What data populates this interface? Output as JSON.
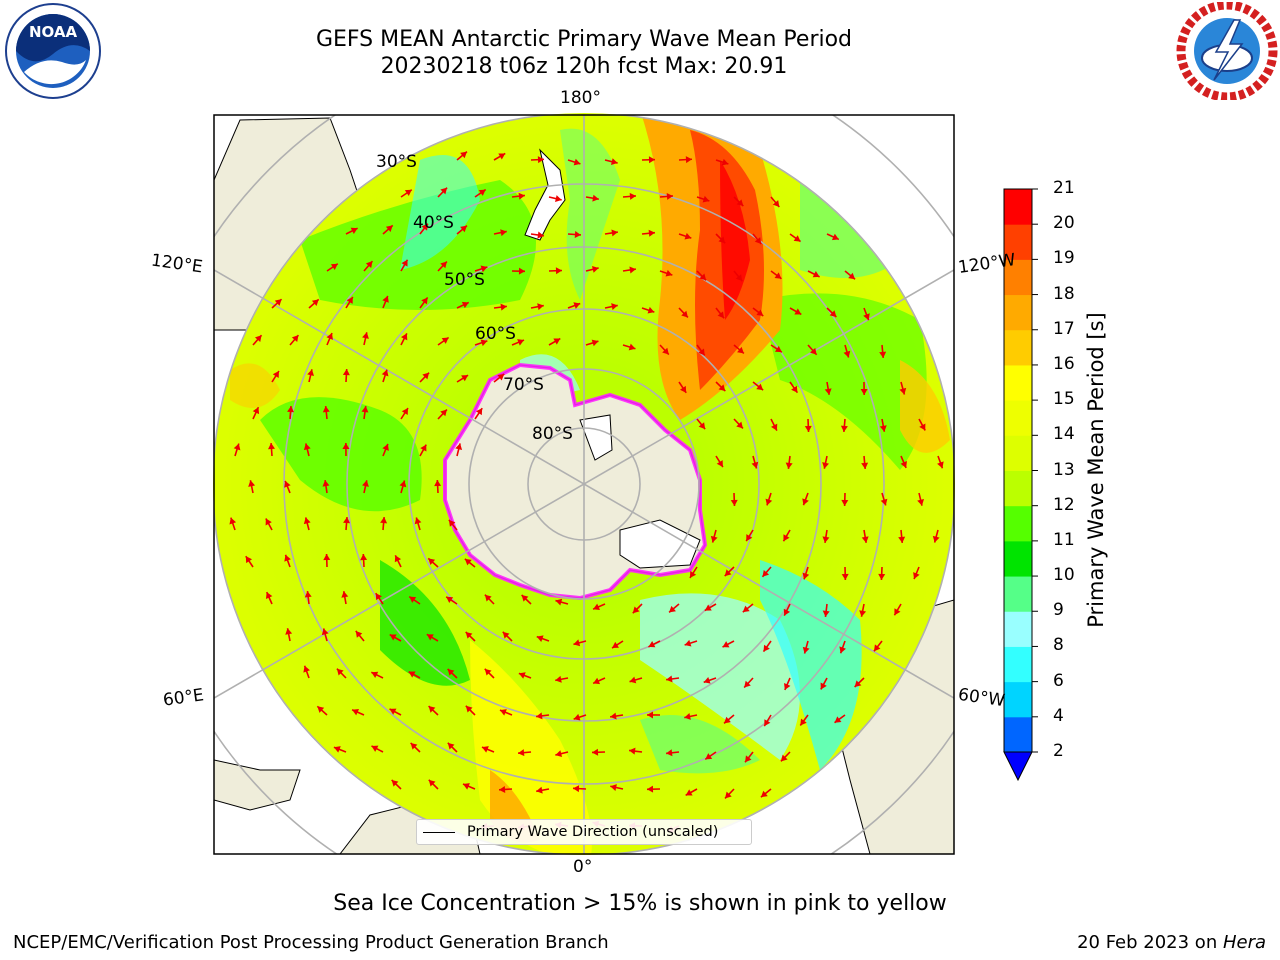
{
  "header": {
    "title_line1": "GEFS MEAN Antarctic Primary Wave Mean Period",
    "title_line2": "20230218 t06z 120h fcst   Max: 20.91"
  },
  "logos": {
    "left": {
      "name": "noaa-logo",
      "text": "NOAA",
      "ring_text": "NATIONAL OCEANIC AND ATMOSPHERIC ADMINISTRATION · U.S. DEPARTMENT OF COMMERCE"
    },
    "right": {
      "name": "nws-logo",
      "ring_text": "NATIONAL WEATHER SERVICE"
    }
  },
  "map": {
    "projection": "south-polar-stereographic",
    "longitude_labels": {
      "top": "180°",
      "bottom": "0°",
      "left_upper": "120°E",
      "left_lower": "60°E",
      "right_upper": "120°W",
      "right_lower": "60°W"
    },
    "latitude_labels": [
      "30°S",
      "40°S",
      "50°S",
      "60°S",
      "70°S",
      "80°S"
    ],
    "legend_label": "Primary Wave Direction (unscaled)",
    "colors": {
      "land": "#efedda",
      "ice_edge": "#ff22ff",
      "arrows": "#ee0000",
      "grid": "#b0b0b0"
    }
  },
  "colorbar": {
    "title": "Primary Wave Mean Period [s]",
    "ticks": [
      "2",
      "4",
      "6",
      "8",
      "9",
      "10",
      "11",
      "12",
      "13",
      "14",
      "15",
      "16",
      "17",
      "18",
      "19",
      "20",
      "21"
    ],
    "colors": [
      "#0066ff",
      "#00d4ff",
      "#33ffff",
      "#99ffff",
      "#55ff88",
      "#00e400",
      "#55ff00",
      "#bbff00",
      "#ddff00",
      "#eeff00",
      "#ffff00",
      "#ffcc00",
      "#ffaa00",
      "#ff8000",
      "#ff4000",
      "#ff0000"
    ],
    "under_color": "#0000ff"
  },
  "note": "Sea Ice Concentration > 15% is shown in pink to yellow",
  "footer": {
    "left": "NCEP/EMC/Verification Post Processing Product Generation Branch",
    "right_prefix": "20 Feb 2023 on ",
    "right_host": "Hera"
  }
}
